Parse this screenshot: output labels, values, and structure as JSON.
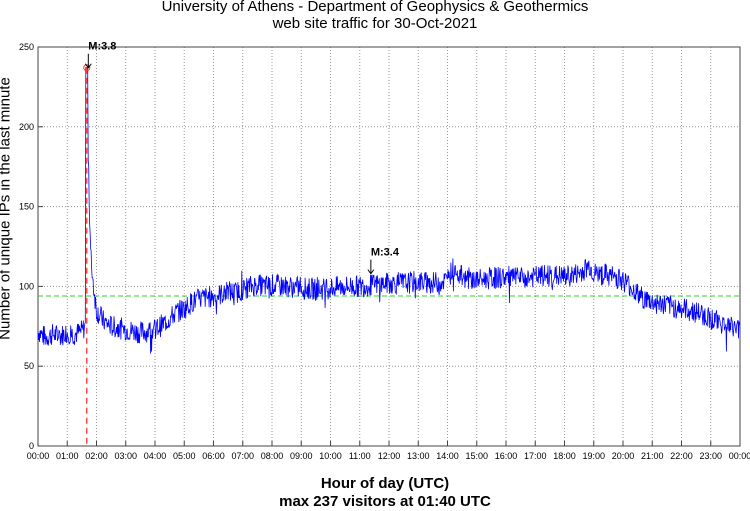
{
  "chart_data": {
    "type": "line",
    "title": "University of Athens - Department of Geophysics & Geothermics",
    "subtitle": "web site traffic for 30-Oct-2021",
    "xlabel": "Hour of day (UTC)",
    "footer": "max 237 visitors at 01:40 UTC",
    "ylabel": "Number of unique IPs in the last minute",
    "xlim": [
      0,
      24
    ],
    "ylim": [
      0,
      250
    ],
    "grid": true,
    "yticks": [
      0,
      50,
      100,
      150,
      200,
      250
    ],
    "xtick_labels": [
      "00:00",
      "01:00",
      "02:00",
      "03:00",
      "04:00",
      "05:00",
      "06:00",
      "07:00",
      "08:00",
      "09:00",
      "10:00",
      "11:00",
      "12:00",
      "13:00",
      "14:00",
      "15:00",
      "16:00",
      "17:00",
      "18:00",
      "19:00",
      "20:00",
      "21:00",
      "22:00",
      "23:00",
      "00:00"
    ],
    "mean_line": {
      "value": 94,
      "color": "#33cc33"
    },
    "max_marker": {
      "hour": 1.667,
      "value": 237,
      "color": "#ff3333"
    },
    "annotations": [
      {
        "label": "M:3.8",
        "hour": 1.72,
        "value": 237
      },
      {
        "label": "M:3.4",
        "hour": 11.38,
        "value": 108
      }
    ],
    "series": [
      {
        "name": "visitors",
        "color": "#0000ff",
        "points": [
          [
            0,
            72
          ],
          [
            0.25,
            68
          ],
          [
            0.5,
            70
          ],
          [
            0.75,
            69
          ],
          [
            1,
            71
          ],
          [
            1.25,
            70
          ],
          [
            1.5,
            72
          ],
          [
            1.62,
            75
          ],
          [
            1.667,
            237
          ],
          [
            1.7,
            200
          ],
          [
            1.75,
            150
          ],
          [
            1.8,
            120
          ],
          [
            1.9,
            100
          ],
          [
            2,
            85
          ],
          [
            2.25,
            78
          ],
          [
            2.5,
            75
          ],
          [
            2.75,
            74
          ],
          [
            3,
            73
          ],
          [
            3.25,
            72
          ],
          [
            3.5,
            71
          ],
          [
            3.75,
            72
          ],
          [
            4,
            73
          ],
          [
            4.25,
            76
          ],
          [
            4.5,
            80
          ],
          [
            4.75,
            84
          ],
          [
            5,
            86
          ],
          [
            5.25,
            90
          ],
          [
            5.5,
            92
          ],
          [
            5.75,
            93
          ],
          [
            6,
            94
          ],
          [
            6.25,
            95
          ],
          [
            6.5,
            97
          ],
          [
            6.75,
            96
          ],
          [
            7,
            98
          ],
          [
            7.25,
            100
          ],
          [
            7.5,
            101
          ],
          [
            7.75,
            100
          ],
          [
            8,
            101
          ],
          [
            8.5,
            100
          ],
          [
            9,
            99
          ],
          [
            9.5,
            98
          ],
          [
            10,
            99
          ],
          [
            10.5,
            100
          ],
          [
            11,
            100
          ],
          [
            11.5,
            101
          ],
          [
            12,
            102
          ],
          [
            12.5,
            102
          ],
          [
            13,
            103
          ],
          [
            13.5,
            102
          ],
          [
            14,
            104
          ],
          [
            14.2,
            112
          ],
          [
            14.5,
            106
          ],
          [
            15,
            104
          ],
          [
            15.5,
            105
          ],
          [
            16,
            106
          ],
          [
            16.5,
            105
          ],
          [
            17,
            106
          ],
          [
            17.5,
            107
          ],
          [
            18,
            106
          ],
          [
            18.5,
            108
          ],
          [
            18.85,
            113
          ],
          [
            19,
            108
          ],
          [
            19.5,
            107
          ],
          [
            20,
            104
          ],
          [
            20.25,
            100
          ],
          [
            20.5,
            95
          ],
          [
            20.75,
            92
          ],
          [
            21,
            90
          ],
          [
            21.5,
            88
          ],
          [
            22,
            86
          ],
          [
            22.5,
            84
          ],
          [
            23,
            80
          ],
          [
            23.5,
            76
          ],
          [
            24,
            73
          ]
        ]
      }
    ]
  }
}
